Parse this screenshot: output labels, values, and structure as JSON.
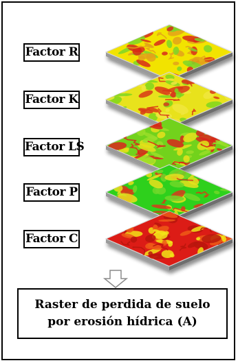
{
  "factors": [
    {
      "label": "Factor R",
      "dominant": "#f2e300",
      "patches": [
        "#d82a1a",
        "#e3a21a",
        "#7cd62a"
      ]
    },
    {
      "label": "Factor K",
      "dominant": "#e8e21a",
      "patches": [
        "#7fd61f",
        "#d83a1a",
        "#f0e640"
      ]
    },
    {
      "label": "Factor LS",
      "dominant": "#72d21f",
      "patches": [
        "#e6e01a",
        "#d8261a",
        "#9ade2a"
      ]
    },
    {
      "label": "Factor P",
      "dominant": "#2ed01c",
      "patches": [
        "#e8e020",
        "#d83a1a",
        "#6fd82a"
      ]
    },
    {
      "label": "Factor C",
      "dominant": "#dc1c14",
      "patches": [
        "#f2e41a",
        "#b81810",
        "#ee5a1a"
      ]
    }
  ],
  "arrow_icon": "down-arrow-icon",
  "result": {
    "line1": "Raster de perdida de suelo",
    "line2": "por erosión hídrica (A)"
  }
}
